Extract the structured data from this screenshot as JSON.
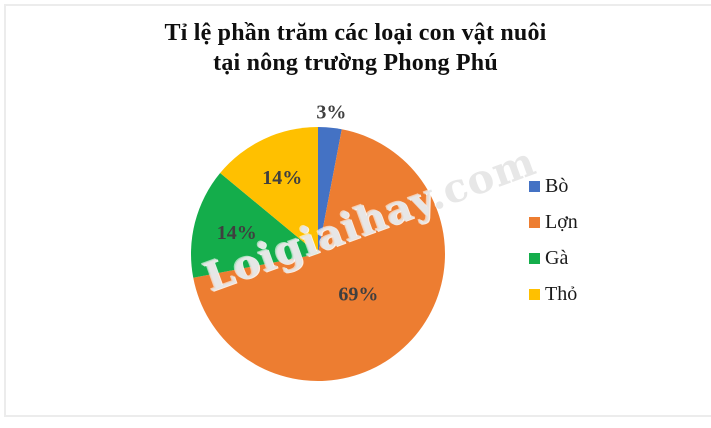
{
  "title": {
    "line1": "Tỉ lệ phần trăm các loại con vật nuôi",
    "line2": "tại nông trường Phong Phú"
  },
  "watermark": "Loigiaihay.com",
  "chart_data": {
    "type": "pie",
    "title": "Tỉ lệ phần trăm các loại con vật nuôi tại nông trường Phong Phú",
    "start_angle_deg": 0,
    "direction": "clockwise",
    "legend_position": "right",
    "label_color": "#3f3f3f",
    "slices": [
      {
        "name": "Bò",
        "value": 3,
        "label": "3%",
        "color": "#4472C4"
      },
      {
        "name": "Lợn",
        "value": 69,
        "label": "69%",
        "color": "#ED7D31"
      },
      {
        "name": "Gà",
        "value": 14,
        "label": "14%",
        "color": "#14AD4B"
      },
      {
        "name": "Thỏ",
        "value": 14,
        "label": "14%",
        "color": "#FFC000"
      }
    ]
  }
}
